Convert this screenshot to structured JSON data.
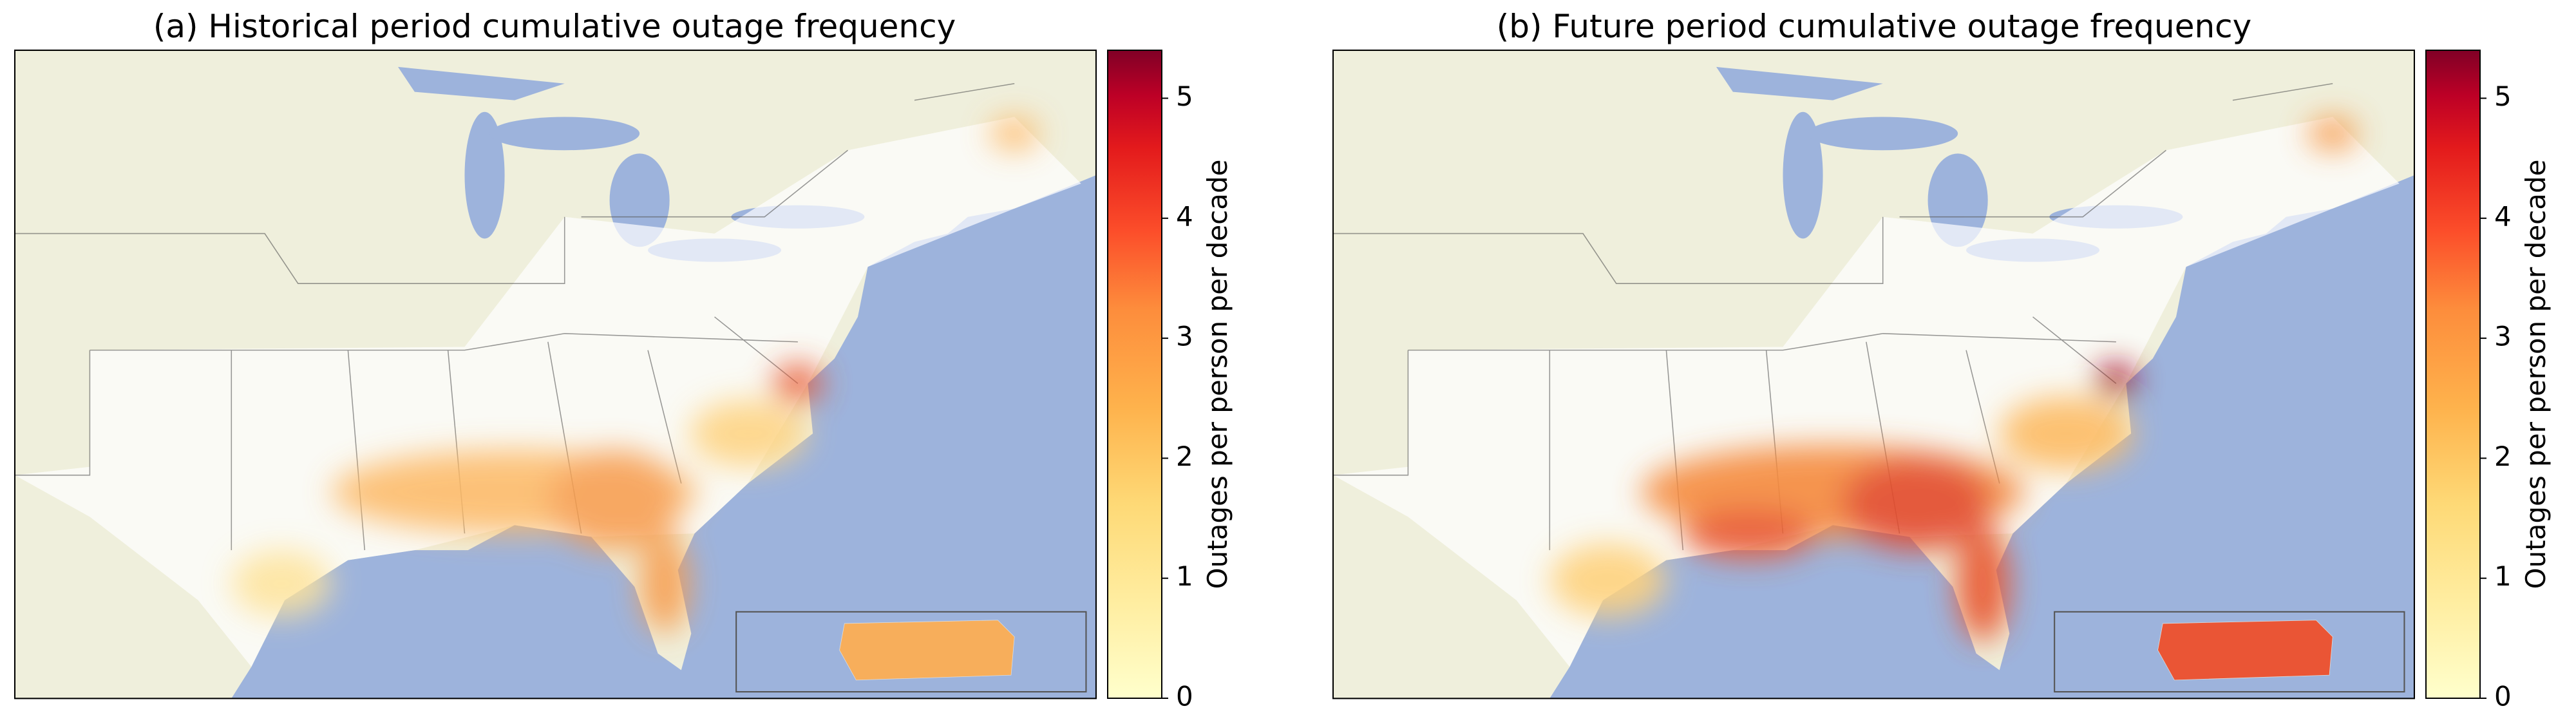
{
  "panels": [
    {
      "title": "(a) Historical period cumulative outage frequency",
      "colorbar": {
        "label": "Outages per person per decade",
        "lim": [
          0,
          5.4
        ],
        "ticks": [
          0,
          1,
          2,
          3,
          4,
          5
        ]
      }
    },
    {
      "title": "(b) Future period cumulative outage frequency",
      "colorbar": {
        "label": "Outages per person per decade",
        "lim": [
          0,
          5.4
        ],
        "ticks": [
          0,
          1,
          2,
          3,
          4,
          5
        ]
      }
    }
  ]
}
